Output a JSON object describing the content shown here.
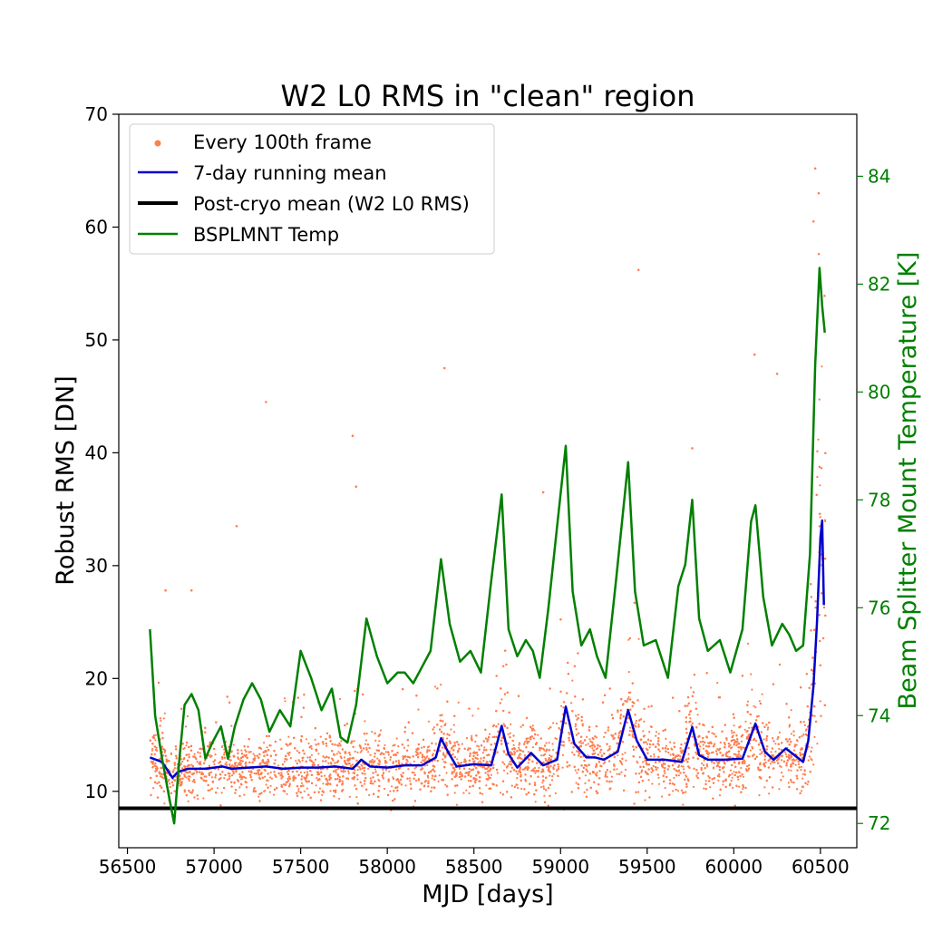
{
  "chart_data": {
    "type": "scatter",
    "title": "W2 L0 RMS in \"clean\" region",
    "xlabel": "MJD [days]",
    "ylabel": "Robust RMS [DN]",
    "y2label": "Beam Splitter Mount Temperature [K]",
    "xlim": [
      56450,
      60710
    ],
    "ylim": [
      5,
      70
    ],
    "y2lim": [
      71.55,
      85.15
    ],
    "x_ticks": [
      56500,
      57000,
      57500,
      58000,
      58500,
      59000,
      59500,
      60000,
      60500
    ],
    "y_ticks": [
      10,
      20,
      30,
      40,
      50,
      60,
      70
    ],
    "y2_ticks": [
      72,
      74,
      76,
      78,
      80,
      82,
      84
    ],
    "grid": false,
    "legend_position": "top-left",
    "colors": {
      "scatter": "#ff7f50",
      "running_mean": "#0000cc",
      "post_cryo": "#000000",
      "temperature": "#008000"
    },
    "series": [
      {
        "name": "Every 100th frame",
        "kind": "scatter",
        "x_range": [
          56630,
          60530
        ],
        "baseline_per_year_peaks": [
          58310,
          58660,
          59030,
          59390,
          59760,
          60125
        ],
        "outliers": [
          [
            57300,
            44.5
          ],
          [
            57800,
            41.5
          ],
          [
            57130,
            33.5
          ],
          [
            57820,
            37
          ],
          [
            58330,
            47.5
          ],
          [
            59450,
            56.2
          ],
          [
            60120,
            48.7
          ],
          [
            60250,
            47
          ],
          [
            59760,
            40.4
          ],
          [
            56720,
            27.8
          ],
          [
            56870,
            27.8
          ],
          [
            58900,
            36.5
          ],
          [
            60470,
            65.2
          ],
          [
            60490,
            63
          ],
          [
            60460,
            60.5
          ]
        ]
      },
      {
        "name": "7-day running mean",
        "kind": "line",
        "x": [
          56630,
          56700,
          56760,
          56790,
          56850,
          56950,
          57050,
          57100,
          57200,
          57300,
          57400,
          57500,
          57600,
          57700,
          57800,
          57850,
          57900,
          58000,
          58100,
          58200,
          58280,
          58310,
          58350,
          58400,
          58500,
          58600,
          58660,
          58700,
          58750,
          58830,
          58900,
          58980,
          59030,
          59080,
          59150,
          59200,
          59250,
          59330,
          59390,
          59440,
          59500,
          59600,
          59700,
          59760,
          59800,
          59850,
          59950,
          60050,
          60125,
          60180,
          60230,
          60300,
          60350,
          60400,
          60430,
          60460,
          60480,
          60500,
          60510,
          60520
        ],
        "values": [
          13,
          12.6,
          11.2,
          11.7,
          12,
          12,
          12.2,
          12,
          12.1,
          12.2,
          12,
          12.1,
          12.1,
          12.2,
          12,
          12.8,
          12.2,
          12.1,
          12.3,
          12.3,
          13,
          14.7,
          13.5,
          12.2,
          12.4,
          12.3,
          15.8,
          13.3,
          12.1,
          13.4,
          12.3,
          12.8,
          17.5,
          14.2,
          13,
          13,
          12.8,
          13.5,
          17.2,
          14.5,
          12.8,
          12.8,
          12.6,
          15.7,
          13.2,
          12.8,
          12.8,
          12.9,
          16,
          13.5,
          12.8,
          13.8,
          13.2,
          12.6,
          14.5,
          19.3,
          25,
          32.5,
          34,
          26.5
        ]
      },
      {
        "name": "Post-cryo mean (W2 L0 RMS)",
        "kind": "hline",
        "value": 8.5
      },
      {
        "name": "BSPLMNT Temp",
        "kind": "line",
        "axis": "right",
        "x": [
          56630,
          56660,
          56700,
          56740,
          56770,
          56800,
          56830,
          56870,
          56910,
          56950,
          56990,
          57040,
          57080,
          57120,
          57170,
          57220,
          57270,
          57320,
          57380,
          57440,
          57500,
          57560,
          57620,
          57680,
          57730,
          57770,
          57820,
          57880,
          57940,
          58000,
          58060,
          58100,
          58150,
          58200,
          58250,
          58310,
          58360,
          58420,
          58480,
          58540,
          58600,
          58660,
          58700,
          58750,
          58800,
          58840,
          58880,
          58930,
          58980,
          59030,
          59070,
          59120,
          59170,
          59210,
          59260,
          59320,
          59390,
          59430,
          59480,
          59550,
          59620,
          59680,
          59720,
          59760,
          59800,
          59850,
          59920,
          59980,
          60050,
          60100,
          60125,
          60170,
          60220,
          60280,
          60320,
          60360,
          60400,
          60440,
          60470,
          60495,
          60510,
          60525
        ],
        "values": [
          75.6,
          74,
          73.2,
          72.5,
          72,
          73.2,
          74.2,
          74.4,
          74.1,
          73.2,
          73.5,
          73.8,
          73.2,
          73.8,
          74.3,
          74.6,
          74.3,
          73.7,
          74.1,
          73.8,
          75.2,
          74.7,
          74.1,
          74.5,
          73.6,
          73.5,
          74.2,
          75.8,
          75.1,
          74.6,
          74.8,
          74.8,
          74.6,
          74.9,
          75.2,
          76.9,
          75.7,
          75,
          75.2,
          74.8,
          76.5,
          78.1,
          75.6,
          75.1,
          75.4,
          75.2,
          74.7,
          76,
          77.5,
          79,
          76.3,
          75.3,
          75.6,
          75.1,
          74.7,
          76.5,
          78.7,
          76.3,
          75.3,
          75.4,
          74.7,
          76.4,
          76.8,
          78,
          75.8,
          75.2,
          75.4,
          74.8,
          75.6,
          77.6,
          77.9,
          76.2,
          75.3,
          75.7,
          75.5,
          75.2,
          75.3,
          77,
          80.5,
          82.3,
          81.6,
          81.1
        ]
      }
    ]
  }
}
